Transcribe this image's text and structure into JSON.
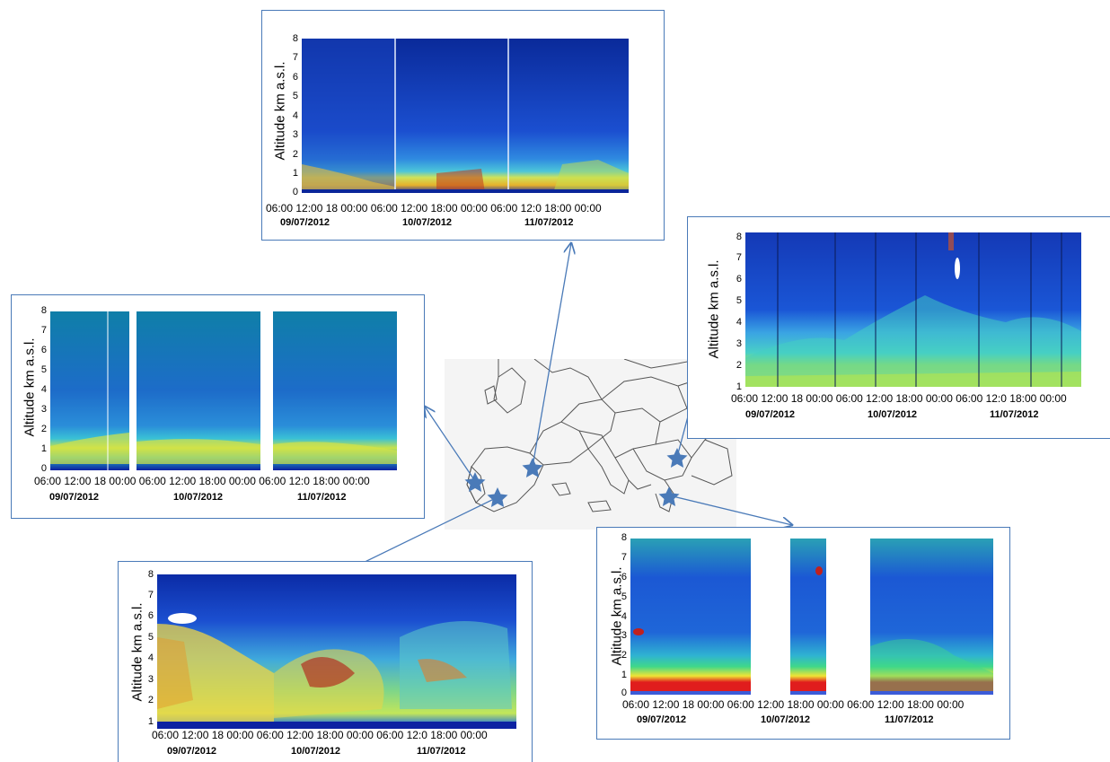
{
  "chart_data": [
    {
      "type": "heatmap",
      "panel": "top",
      "ylabel": "Altitude km a.s.l.",
      "y_ticks": [
        "0",
        "1",
        "2",
        "3",
        "4",
        "5",
        "6",
        "7",
        "8"
      ],
      "ylim": [
        0,
        8
      ],
      "x_ticks": "06:00 12:00 18 00:00 06:00 12:00 18:00 00:00 06:00 12:0 18:00 00:00",
      "dates": [
        "09/07/2012",
        "10/07/2012",
        "11/07/2012"
      ]
    },
    {
      "type": "heatmap",
      "panel": "right",
      "ylabel": "Altitude km a.s.l.",
      "y_ticks": [
        "1",
        "2",
        "3",
        "4",
        "5",
        "6",
        "7",
        "8"
      ],
      "ylim": [
        1,
        8
      ],
      "x_ticks": "06:00 12:00 18 00:00 06:00 12:00 18:00 00:00 06:00 12:0 18:00 00:00",
      "dates": [
        "09/07/2012",
        "10/07/2012",
        "11/07/2012"
      ]
    },
    {
      "type": "heatmap",
      "panel": "left",
      "ylabel": "Altitude km a.s.l.",
      "y_ticks": [
        "0",
        "1",
        "2",
        "3",
        "4",
        "5",
        "6",
        "7",
        "8"
      ],
      "ylim": [
        0,
        8
      ],
      "x_ticks": "06:00 12:00 18 00:00 06:00 12:00 18:00 00:00 06:00 12:0 18:00 00:00",
      "dates": [
        "09/07/2012",
        "10/07/2012",
        "11/07/2012"
      ]
    },
    {
      "type": "heatmap",
      "panel": "bottom-left",
      "ylabel": "Altitude km a.s.l.",
      "y_ticks": [
        "1",
        "2",
        "3",
        "4",
        "5",
        "6",
        "7",
        "8"
      ],
      "ylim": [
        1,
        8
      ],
      "x_ticks": "06:00 12:00 18 00:00 06:00 12:00 18:00 00:00 06:00 12:0 18:00 00:00",
      "dates": [
        "09/07/2012",
        "10/07/2012",
        "11/07/2012"
      ]
    },
    {
      "type": "heatmap",
      "panel": "bottom-right",
      "ylabel": "Altitude km a.s.l.",
      "y_ticks": [
        "0",
        "1",
        "2",
        "3",
        "4",
        "5",
        "6",
        "7",
        "8"
      ],
      "ylim": [
        0,
        8
      ],
      "x_ticks": "06:00 12:00 18 00:00 06:00 12:00 18:00 00:00 06:00 12:00 18:00 00:00",
      "dates": [
        "09/07/2012",
        "10/07/2012",
        "11/07/2012"
      ]
    }
  ],
  "map": {
    "station_marker_color": "#4a7ab8",
    "station_count": 5,
    "icon": "star-icon"
  }
}
